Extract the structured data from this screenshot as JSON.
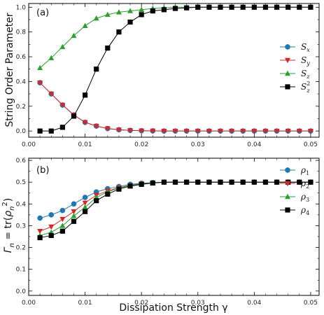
{
  "chart_data": [
    {
      "type": "line",
      "panel_label": "(a)",
      "xlabel": "",
      "ylabel": "String Order Parameter",
      "xlim": [
        0.0,
        0.0515
      ],
      "ylim": [
        -0.05,
        1.03
      ],
      "xticks": [
        "0.00",
        "0.01",
        "0.02",
        "0.03",
        "0.04",
        "0.05"
      ],
      "yticks": [
        "0.0",
        "0.2",
        "0.4",
        "0.6",
        "0.8",
        "1.0"
      ],
      "legend_position": "center-right",
      "x": [
        0.002,
        0.004,
        0.006,
        0.008,
        0.01,
        0.012,
        0.014,
        0.016,
        0.018,
        0.02,
        0.022,
        0.024,
        0.026,
        0.028,
        0.03,
        0.032,
        0.034,
        0.036,
        0.038,
        0.04,
        0.042,
        0.044,
        0.046,
        0.048,
        0.05
      ],
      "series": [
        {
          "name": "S_x",
          "label_base": "S",
          "label_sub": "x",
          "label_sup": "",
          "color": "#1f77b4",
          "marker": "circle",
          "values": [
            0.39,
            0.3,
            0.21,
            0.13,
            0.07,
            0.04,
            0.02,
            0.01,
            0.005,
            0.002,
            0.001,
            0.0,
            0.0,
            0.0,
            0.0,
            0.0,
            0.0,
            0.0,
            0.0,
            0.0,
            0.0,
            0.0,
            0.0,
            0.0,
            0.0
          ]
        },
        {
          "name": "S_y",
          "label_base": "S",
          "label_sub": "y",
          "label_sup": "",
          "color": "#d62728",
          "marker": "triangle-down",
          "values": [
            0.39,
            0.3,
            0.21,
            0.13,
            0.07,
            0.04,
            0.02,
            0.01,
            0.005,
            0.002,
            0.001,
            0.0,
            0.0,
            0.0,
            0.0,
            0.0,
            0.0,
            0.0,
            0.0,
            0.0,
            0.0,
            0.0,
            0.0,
            0.0,
            0.0
          ]
        },
        {
          "name": "S_z",
          "label_base": "S",
          "label_sub": "z",
          "label_sup": "",
          "color": "#2ca02c",
          "marker": "triangle-up",
          "values": [
            0.51,
            0.59,
            0.68,
            0.77,
            0.85,
            0.91,
            0.94,
            0.96,
            0.97,
            0.98,
            0.99,
            0.995,
            1.0,
            1.0,
            1.0,
            1.0,
            1.0,
            1.0,
            1.0,
            1.0,
            1.0,
            1.0,
            1.0,
            1.0,
            1.0
          ]
        },
        {
          "name": "S_z^2",
          "label_base": "S",
          "label_sub": "z",
          "label_sup": "2",
          "color": "#000000",
          "marker": "square",
          "values": [
            0.0,
            0.0,
            0.03,
            0.12,
            0.29,
            0.5,
            0.67,
            0.8,
            0.88,
            0.94,
            0.97,
            0.98,
            0.99,
            0.995,
            1.0,
            1.0,
            1.0,
            1.0,
            1.0,
            1.0,
            1.0,
            1.0,
            1.0,
            1.0,
            1.0
          ]
        }
      ]
    },
    {
      "type": "line",
      "panel_label": "(b)",
      "xlabel": "Dissipation Strength γ",
      "ylabel": "Γ_n = tr(ρ_n^2)",
      "ylabel_parts": {
        "gamma": "Γ",
        "sub": "n",
        "eq": " = tr(",
        "rho": "ρ",
        "rsub": "n",
        "rsup": "2",
        "close": ")"
      },
      "xlim": [
        0.0,
        0.0515
      ],
      "ylim": [
        -0.02,
        0.61
      ],
      "xticks": [
        "0.00",
        "0.01",
        "0.02",
        "0.03",
        "0.04",
        "0.05"
      ],
      "yticks": [
        "0.0",
        "0.1",
        "0.2",
        "0.3",
        "0.4",
        "0.5",
        "0.6"
      ],
      "legend_position": "top-right",
      "x": [
        0.002,
        0.004,
        0.006,
        0.008,
        0.01,
        0.012,
        0.014,
        0.016,
        0.018,
        0.02,
        0.022,
        0.024,
        0.026,
        0.028,
        0.03,
        0.032,
        0.034,
        0.036,
        0.038,
        0.04,
        0.042,
        0.044,
        0.046,
        0.048,
        0.05
      ],
      "series": [
        {
          "name": "ρ_1",
          "label_base": "ρ",
          "label_sub": "1",
          "label_sup": "",
          "color": "#1f77b4",
          "marker": "circle",
          "values": [
            0.335,
            0.35,
            0.37,
            0.4,
            0.43,
            0.455,
            0.47,
            0.48,
            0.49,
            0.495,
            0.498,
            0.5,
            0.5,
            0.5,
            0.5,
            0.5,
            0.5,
            0.5,
            0.5,
            0.5,
            0.5,
            0.5,
            0.5,
            0.5,
            0.5
          ]
        },
        {
          "name": "ρ_2",
          "label_base": "ρ",
          "label_sub": "2",
          "label_sup": "",
          "color": "#d62728",
          "marker": "triangle-down",
          "values": [
            0.275,
            0.295,
            0.33,
            0.365,
            0.405,
            0.44,
            0.46,
            0.475,
            0.485,
            0.493,
            0.497,
            0.5,
            0.5,
            0.5,
            0.5,
            0.5,
            0.5,
            0.5,
            0.5,
            0.5,
            0.5,
            0.5,
            0.5,
            0.5,
            0.5
          ]
        },
        {
          "name": "ρ_3",
          "label_base": "ρ",
          "label_sub": "3",
          "label_sup": "",
          "color": "#2ca02c",
          "marker": "triangle-up",
          "values": [
            0.255,
            0.27,
            0.3,
            0.345,
            0.385,
            0.43,
            0.455,
            0.473,
            0.484,
            0.492,
            0.497,
            0.5,
            0.5,
            0.5,
            0.5,
            0.5,
            0.5,
            0.5,
            0.5,
            0.5,
            0.5,
            0.5,
            0.5,
            0.5,
            0.5
          ]
        },
        {
          "name": "ρ_4",
          "label_base": "ρ",
          "label_sub": "4",
          "label_sup": "",
          "color": "#000000",
          "marker": "square",
          "values": [
            0.245,
            0.255,
            0.275,
            0.32,
            0.365,
            0.415,
            0.445,
            0.468,
            0.482,
            0.49,
            0.496,
            0.5,
            0.5,
            0.5,
            0.5,
            0.5,
            0.5,
            0.5,
            0.5,
            0.5,
            0.5,
            0.5,
            0.5,
            0.5,
            0.5
          ]
        }
      ]
    }
  ]
}
